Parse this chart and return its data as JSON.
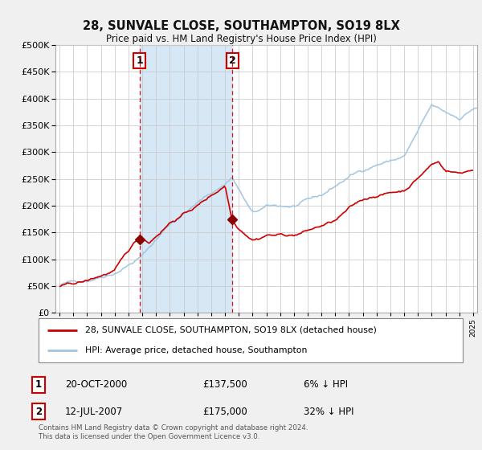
{
  "title": "28, SUNVALE CLOSE, SOUTHAMPTON, SO19 8LX",
  "subtitle": "Price paid vs. HM Land Registry's House Price Index (HPI)",
  "legend_line1": "28, SUNVALE CLOSE, SOUTHAMPTON, SO19 8LX (detached house)",
  "legend_line2": "HPI: Average price, detached house, Southampton",
  "transaction1_date": "20-OCT-2000",
  "transaction1_price": "£137,500",
  "transaction1_hpi": "6% ↓ HPI",
  "transaction2_date": "12-JUL-2007",
  "transaction2_price": "£175,000",
  "transaction2_hpi": "32% ↓ HPI",
  "footer": "Contains HM Land Registry data © Crown copyright and database right 2024.\nThis data is licensed under the Open Government Licence v3.0.",
  "hpi_color": "#a0c4e0",
  "price_color": "#cc0000",
  "vline_color": "#cc0000",
  "shade_color": "#d6e8f5",
  "bg_color": "#f0f0f0",
  "plot_bg": "#ffffff",
  "marker_color": "#8b0000",
  "ylim": [
    0,
    500000
  ],
  "yticks": [
    0,
    50000,
    100000,
    150000,
    200000,
    250000,
    300000,
    350000,
    400000,
    450000,
    500000
  ],
  "transaction1_x": 2000.8,
  "transaction1_y": 137500,
  "transaction2_x": 2007.53,
  "transaction2_y": 175000,
  "xmin": 1994.7,
  "xmax": 2025.3
}
